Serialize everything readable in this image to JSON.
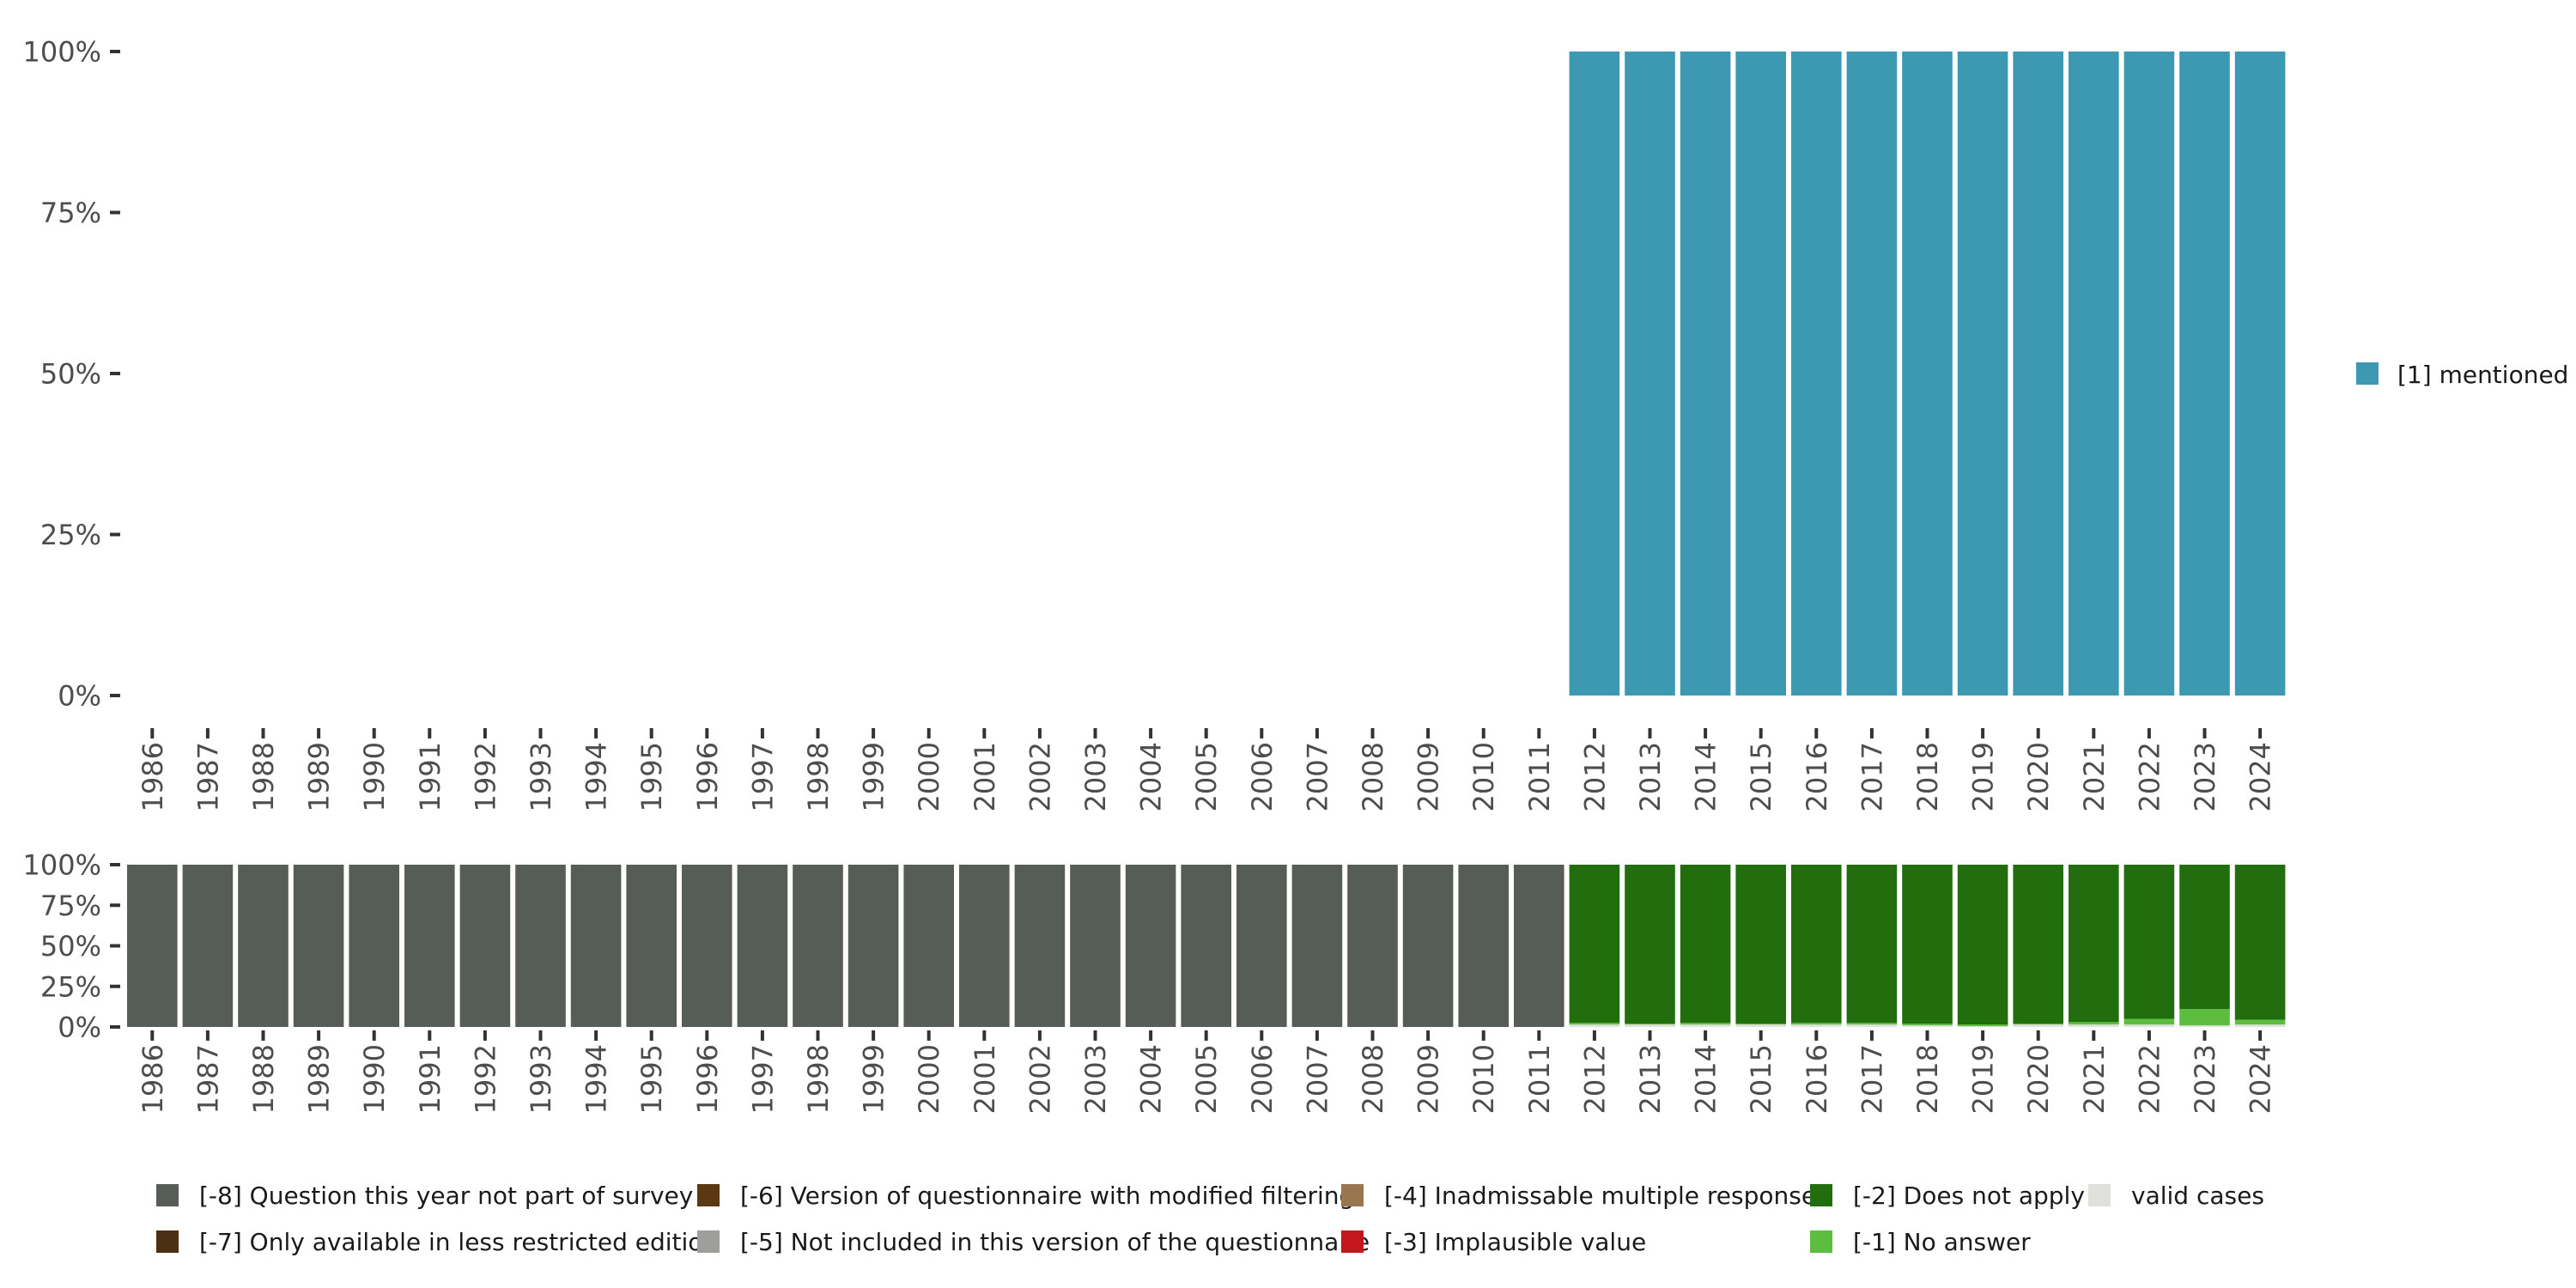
{
  "chart_data": [
    {
      "type": "bar",
      "stacked": true,
      "title": "",
      "xlabel": "",
      "ylabel": "",
      "ylim": [
        0,
        100
      ],
      "y_ticks": [
        "0%",
        "25%",
        "50%",
        "75%",
        "100%"
      ],
      "categories": [
        "1986",
        "1987",
        "1988",
        "1989",
        "1990",
        "1991",
        "1992",
        "1993",
        "1994",
        "1995",
        "1996",
        "1997",
        "1998",
        "1999",
        "2000",
        "2001",
        "2002",
        "2003",
        "2004",
        "2005",
        "2006",
        "2007",
        "2008",
        "2009",
        "2010",
        "2011",
        "2012",
        "2013",
        "2014",
        "2015",
        "2016",
        "2017",
        "2018",
        "2019",
        "2020",
        "2021",
        "2022",
        "2023",
        "2024"
      ],
      "series": [
        {
          "name": "[1] mentioned",
          "color": "#3d98b2",
          "values": [
            0,
            0,
            0,
            0,
            0,
            0,
            0,
            0,
            0,
            0,
            0,
            0,
            0,
            0,
            0,
            0,
            0,
            0,
            0,
            0,
            0,
            0,
            0,
            0,
            0,
            0,
            100,
            100,
            100,
            100,
            100,
            100,
            100,
            100,
            100,
            100,
            100,
            100,
            100
          ]
        }
      ],
      "legend": [
        "[1] mentioned"
      ],
      "legend_position": "right"
    },
    {
      "type": "bar",
      "stacked": true,
      "title": "",
      "xlabel": "",
      "ylabel": "",
      "ylim": [
        0,
        100
      ],
      "y_ticks": [
        "0%",
        "25%",
        "50%",
        "75%",
        "100%"
      ],
      "categories": [
        "1986",
        "1987",
        "1988",
        "1989",
        "1990",
        "1991",
        "1992",
        "1993",
        "1994",
        "1995",
        "1996",
        "1997",
        "1998",
        "1999",
        "2000",
        "2001",
        "2002",
        "2003",
        "2004",
        "2005",
        "2006",
        "2007",
        "2008",
        "2009",
        "2010",
        "2011",
        "2012",
        "2013",
        "2014",
        "2015",
        "2016",
        "2017",
        "2018",
        "2019",
        "2020",
        "2021",
        "2022",
        "2023",
        "2024"
      ],
      "series": [
        {
          "name": "valid cases",
          "color": "#e0e0dc",
          "values": [
            0,
            0,
            0,
            0,
            0,
            0,
            0,
            0,
            0,
            0,
            0,
            0,
            0,
            0,
            0,
            0,
            0,
            0,
            0,
            0,
            0,
            0,
            0,
            0,
            0,
            0,
            1.5,
            1.5,
            1.5,
            1.5,
            1.5,
            1.5,
            1,
            0.5,
            1.5,
            1.5,
            1.5,
            1,
            1.5
          ]
        },
        {
          "name": "[-1] No answer",
          "color": "#5cbd3e",
          "values": [
            0,
            0,
            0,
            0,
            0,
            0,
            0,
            0,
            0,
            0,
            0,
            0,
            0,
            0,
            0,
            0,
            0,
            0,
            0,
            0,
            0,
            0,
            0,
            0,
            0,
            0,
            1,
            0.5,
            1,
            0.5,
            1,
            1,
            1,
            1,
            0.5,
            1.5,
            3.5,
            10,
            3
          ]
        },
        {
          "name": "[-2] Does not apply",
          "color": "#226d0e",
          "values": [
            0,
            0,
            0,
            0,
            0,
            0,
            0,
            0,
            0,
            0,
            0,
            0,
            0,
            0,
            0,
            0,
            0,
            0,
            0,
            0,
            0,
            0,
            0,
            0,
            0,
            0,
            97.5,
            98,
            97.5,
            98,
            97.5,
            97.5,
            98,
            98.5,
            98,
            97,
            95,
            89,
            95.5
          ]
        },
        {
          "name": "[-8] Question this year not part of survey",
          "color": "#565c56",
          "values": [
            100,
            100,
            100,
            100,
            100,
            100,
            100,
            100,
            100,
            100,
            100,
            100,
            100,
            100,
            100,
            100,
            100,
            100,
            100,
            100,
            100,
            100,
            100,
            100,
            100,
            100,
            0,
            0,
            0,
            0,
            0,
            0,
            0,
            0,
            0,
            0,
            0,
            0,
            0
          ]
        }
      ],
      "legend": [
        {
          "label": "[-8] Question this year not part of survey",
          "color": "#565c56"
        },
        {
          "label": "[-7] Only available in less restricted edition",
          "color": "#4d3013"
        },
        {
          "label": "[-6] Version of questionnaire with modified filtering",
          "color": "#5a3814"
        },
        {
          "label": "[-5] Not included in this version of the questionnaire",
          "color": "#9e9e9a"
        },
        {
          "label": "[-4] Inadmissable multiple response",
          "color": "#9a7650"
        },
        {
          "label": "[-3] Implausible value",
          "color": "#c4161c"
        },
        {
          "label": "[-2] Does not apply",
          "color": "#226d0e"
        },
        {
          "label": "[-1] No answer",
          "color": "#5cbd3e"
        },
        {
          "label": "valid cases",
          "color": "#e0e0dc"
        }
      ],
      "legend_position": "bottom"
    }
  ]
}
